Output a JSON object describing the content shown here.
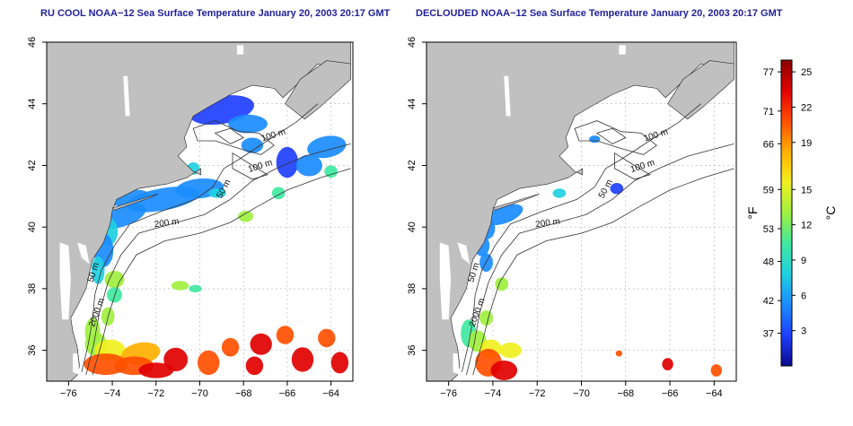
{
  "panels": [
    {
      "title": "RU COOL NOAA−12 Sea Surface Temperature January 20, 2003 20:17 GMT",
      "variant": "full"
    },
    {
      "title": "DECLOUDED NOAA−12 Sea Surface Temperature January 20, 2003 20:17 GMT",
      "variant": "declouded"
    }
  ],
  "axes": {
    "lon_ticks": [
      "−76",
      "−74",
      "−72",
      "−70",
      "−68",
      "−66",
      "−64"
    ],
    "lat_ticks": [
      "36",
      "38",
      "40",
      "42",
      "44",
      "46"
    ],
    "lon_range": [
      -77,
      -63
    ],
    "lat_range": [
      35,
      46
    ],
    "grid": true
  },
  "contours": {
    "labels": [
      "100 m",
      "100 m",
      "50 m",
      "200 m",
      "50 m",
      "2000 m"
    ]
  },
  "colorbar": {
    "fahrenheit_label": "°F",
    "celsius_label": "°C",
    "fahrenheit_ticks": [
      "77",
      "71",
      "66",
      "59",
      "53",
      "48",
      "42",
      "37"
    ],
    "celsius_ticks": [
      "25",
      "22",
      "19",
      "15",
      "12",
      "9",
      "6",
      "3"
    ],
    "celsius_range": [
      0,
      26
    ],
    "colors": [
      "#0a0a8c",
      "#1f3fff",
      "#1a8cff",
      "#20d0e0",
      "#40e8a0",
      "#a0f040",
      "#f0f020",
      "#ffb000",
      "#ff5000",
      "#e00000",
      "#8c0000"
    ]
  },
  "colors": {
    "land": "#c0c0c0",
    "title": "#1f1f9c",
    "contour": "#333333",
    "grid": "#b0b0b0"
  }
}
